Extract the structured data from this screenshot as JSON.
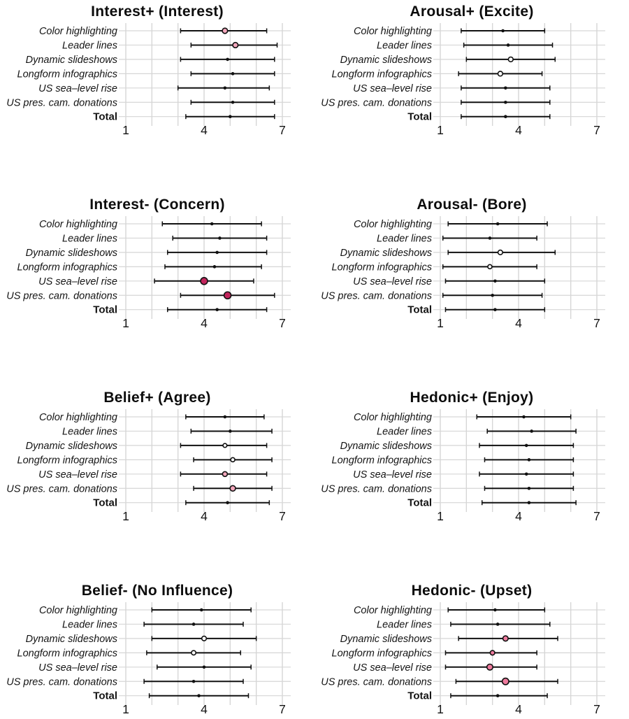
{
  "axis": {
    "min": 1,
    "max": 7,
    "tick_values": [
      1,
      4,
      7
    ],
    "grid_values": [
      1,
      2,
      3,
      4,
      5,
      6,
      7
    ]
  },
  "colors": {
    "marker_default": "#111111",
    "highlight_white": "#ffffff",
    "highlight_pink_light": "#f3a6bb",
    "highlight_pink_medium": "#ee7a9d",
    "highlight_magenta": "#c2255c",
    "interval": "#111111",
    "grid": "#d6d6d6"
  },
  "chart_data": [
    {
      "type": "scatter",
      "title": "Interest+ (Interest)",
      "xlabel": "",
      "ylabel": "",
      "xlim": [
        1,
        7
      ],
      "xticks": [
        1,
        4,
        7
      ],
      "rows": [
        {
          "label": "Color highlighting",
          "mean": 4.8,
          "lo": 3.1,
          "hi": 6.4,
          "marker": "pink_light",
          "r": 3.8
        },
        {
          "label": "Leader lines",
          "mean": 5.2,
          "lo": 3.5,
          "hi": 6.8,
          "marker": "pink_light",
          "r": 3.8
        },
        {
          "label": "Dynamic slideshows",
          "mean": 4.9,
          "lo": 3.1,
          "hi": 6.7,
          "marker": "default",
          "r": 2.3
        },
        {
          "label": "Longform infographics",
          "mean": 5.1,
          "lo": 3.5,
          "hi": 6.7,
          "marker": "default",
          "r": 2.3
        },
        {
          "label": "US sea–level rise",
          "mean": 4.8,
          "lo": 3.0,
          "hi": 6.5,
          "marker": "default",
          "r": 2.3
        },
        {
          "label": "US pres. cam. donations",
          "mean": 5.1,
          "lo": 3.5,
          "hi": 6.7,
          "marker": "default",
          "r": 2.3
        },
        {
          "label": "Total",
          "mean": 5.0,
          "lo": 3.3,
          "hi": 6.7,
          "marker": "default",
          "r": 2.3
        }
      ]
    },
    {
      "type": "scatter",
      "title": "Arousal+ (Excite)",
      "xlabel": "",
      "ylabel": "",
      "xlim": [
        1,
        7
      ],
      "xticks": [
        1,
        4,
        7
      ],
      "rows": [
        {
          "label": "Color highlighting",
          "mean": 3.4,
          "lo": 1.8,
          "hi": 5.0,
          "marker": "default",
          "r": 2.3
        },
        {
          "label": "Leader lines",
          "mean": 3.6,
          "lo": 1.9,
          "hi": 5.3,
          "marker": "default",
          "r": 2.3
        },
        {
          "label": "Dynamic slideshows",
          "mean": 3.7,
          "lo": 2.0,
          "hi": 5.4,
          "marker": "white",
          "r": 3.4
        },
        {
          "label": "Longform infographics",
          "mean": 3.3,
          "lo": 1.7,
          "hi": 4.9,
          "marker": "white",
          "r": 3.4
        },
        {
          "label": "US sea–level rise",
          "mean": 3.5,
          "lo": 1.8,
          "hi": 5.2,
          "marker": "default",
          "r": 2.3
        },
        {
          "label": "US pres. cam. donations",
          "mean": 3.5,
          "lo": 1.8,
          "hi": 5.2,
          "marker": "default",
          "r": 2.3
        },
        {
          "label": "Total",
          "mean": 3.5,
          "lo": 1.8,
          "hi": 5.2,
          "marker": "default",
          "r": 2.3
        }
      ]
    },
    {
      "type": "scatter",
      "title": "Interest- (Concern)",
      "xlabel": "",
      "ylabel": "",
      "xlim": [
        1,
        7
      ],
      "xticks": [
        1,
        4,
        7
      ],
      "rows": [
        {
          "label": "Color highlighting",
          "mean": 4.3,
          "lo": 2.4,
          "hi": 6.2,
          "marker": "default",
          "r": 2.3
        },
        {
          "label": "Leader lines",
          "mean": 4.6,
          "lo": 2.8,
          "hi": 6.4,
          "marker": "default",
          "r": 2.3
        },
        {
          "label": "Dynamic slideshows",
          "mean": 4.5,
          "lo": 2.6,
          "hi": 6.4,
          "marker": "default",
          "r": 2.3
        },
        {
          "label": "Longform infographics",
          "mean": 4.4,
          "lo": 2.5,
          "hi": 6.2,
          "marker": "default",
          "r": 2.3
        },
        {
          "label": "US sea–level rise",
          "mean": 4.0,
          "lo": 2.1,
          "hi": 5.9,
          "marker": "magenta",
          "r": 5.0
        },
        {
          "label": "US pres. cam. donations",
          "mean": 4.9,
          "lo": 3.1,
          "hi": 6.7,
          "marker": "magenta",
          "r": 5.0
        },
        {
          "label": "Total",
          "mean": 4.5,
          "lo": 2.6,
          "hi": 6.4,
          "marker": "default",
          "r": 2.3
        }
      ]
    },
    {
      "type": "scatter",
      "title": "Arousal- (Bore)",
      "xlabel": "",
      "ylabel": "",
      "xlim": [
        1,
        7
      ],
      "xticks": [
        1,
        4,
        7
      ],
      "rows": [
        {
          "label": "Color highlighting",
          "mean": 3.2,
          "lo": 1.3,
          "hi": 5.1,
          "marker": "default",
          "r": 2.3
        },
        {
          "label": "Leader lines",
          "mean": 2.9,
          "lo": 1.1,
          "hi": 4.7,
          "marker": "default",
          "r": 2.3
        },
        {
          "label": "Dynamic slideshows",
          "mean": 3.3,
          "lo": 1.3,
          "hi": 5.4,
          "marker": "white",
          "r": 3.3
        },
        {
          "label": "Longform infographics",
          "mean": 2.9,
          "lo": 1.1,
          "hi": 4.7,
          "marker": "white",
          "r": 3.0
        },
        {
          "label": "US sea–level rise",
          "mean": 3.1,
          "lo": 1.2,
          "hi": 5.0,
          "marker": "default",
          "r": 2.3
        },
        {
          "label": "US pres. cam. donations",
          "mean": 3.0,
          "lo": 1.1,
          "hi": 4.9,
          "marker": "default",
          "r": 2.3
        },
        {
          "label": "Total",
          "mean": 3.1,
          "lo": 1.2,
          "hi": 5.0,
          "marker": "default",
          "r": 2.3
        }
      ]
    },
    {
      "type": "scatter",
      "title": "Belief+ (Agree)",
      "xlabel": "",
      "ylabel": "",
      "xlim": [
        1,
        7
      ],
      "xticks": [
        1,
        4,
        7
      ],
      "rows": [
        {
          "label": "Color highlighting",
          "mean": 4.8,
          "lo": 3.3,
          "hi": 6.3,
          "marker": "default",
          "r": 2.3
        },
        {
          "label": "Leader lines",
          "mean": 5.0,
          "lo": 3.5,
          "hi": 6.6,
          "marker": "default",
          "r": 2.3
        },
        {
          "label": "Dynamic slideshows",
          "mean": 4.8,
          "lo": 3.1,
          "hi": 6.4,
          "marker": "white",
          "r": 2.8
        },
        {
          "label": "Longform infographics",
          "mean": 5.1,
          "lo": 3.6,
          "hi": 6.6,
          "marker": "white",
          "r": 3.0
        },
        {
          "label": "US sea–level rise",
          "mean": 4.8,
          "lo": 3.1,
          "hi": 6.4,
          "marker": "pink_light",
          "r": 3.5
        },
        {
          "label": "US pres. cam. donations",
          "mean": 5.1,
          "lo": 3.6,
          "hi": 6.6,
          "marker": "pink_light",
          "r": 3.9
        },
        {
          "label": "Total",
          "mean": 4.9,
          "lo": 3.3,
          "hi": 6.5,
          "marker": "default",
          "r": 2.3
        }
      ]
    },
    {
      "type": "scatter",
      "title": "Hedonic+ (Enjoy)",
      "xlabel": "",
      "ylabel": "",
      "xlim": [
        1,
        7
      ],
      "xticks": [
        1,
        4,
        7
      ],
      "rows": [
        {
          "label": "Color highlighting",
          "mean": 4.2,
          "lo": 2.4,
          "hi": 6.0,
          "marker": "default",
          "r": 2.3
        },
        {
          "label": "Leader lines",
          "mean": 4.5,
          "lo": 2.8,
          "hi": 6.2,
          "marker": "default",
          "r": 2.3
        },
        {
          "label": "Dynamic slideshows",
          "mean": 4.3,
          "lo": 2.5,
          "hi": 6.1,
          "marker": "default",
          "r": 2.3
        },
        {
          "label": "Longform infographics",
          "mean": 4.4,
          "lo": 2.7,
          "hi": 6.1,
          "marker": "default",
          "r": 2.3
        },
        {
          "label": "US sea–level rise",
          "mean": 4.3,
          "lo": 2.5,
          "hi": 6.1,
          "marker": "default",
          "r": 2.3
        },
        {
          "label": "US pres. cam. donations",
          "mean": 4.4,
          "lo": 2.7,
          "hi": 6.1,
          "marker": "default",
          "r": 2.3
        },
        {
          "label": "Total",
          "mean": 4.4,
          "lo": 2.6,
          "hi": 6.2,
          "marker": "default",
          "r": 2.3
        }
      ]
    },
    {
      "type": "scatter",
      "title": "Belief- (No Influence)",
      "xlabel": "",
      "ylabel": "",
      "xlim": [
        1,
        7
      ],
      "xticks": [
        1,
        4,
        7
      ],
      "rows": [
        {
          "label": "Color highlighting",
          "mean": 3.9,
          "lo": 2.0,
          "hi": 5.8,
          "marker": "default",
          "r": 2.3
        },
        {
          "label": "Leader lines",
          "mean": 3.6,
          "lo": 1.7,
          "hi": 5.5,
          "marker": "default",
          "r": 2.3
        },
        {
          "label": "Dynamic slideshows",
          "mean": 4.0,
          "lo": 2.0,
          "hi": 6.0,
          "marker": "white",
          "r": 3.3
        },
        {
          "label": "Longform infographics",
          "mean": 3.6,
          "lo": 1.8,
          "hi": 5.4,
          "marker": "white",
          "r": 3.2
        },
        {
          "label": "US sea–level rise",
          "mean": 4.0,
          "lo": 2.2,
          "hi": 5.8,
          "marker": "default",
          "r": 2.3
        },
        {
          "label": "US pres. cam. donations",
          "mean": 3.6,
          "lo": 1.7,
          "hi": 5.5,
          "marker": "default",
          "r": 2.3
        },
        {
          "label": "Total",
          "mean": 3.8,
          "lo": 1.9,
          "hi": 5.7,
          "marker": "default",
          "r": 2.3
        }
      ]
    },
    {
      "type": "scatter",
      "title": "Hedonic- (Upset)",
      "xlabel": "",
      "ylabel": "",
      "xlim": [
        1,
        7
      ],
      "xticks": [
        1,
        4,
        7
      ],
      "rows": [
        {
          "label": "Color highlighting",
          "mean": 3.1,
          "lo": 1.3,
          "hi": 5.0,
          "marker": "default",
          "r": 2.3
        },
        {
          "label": "Leader lines",
          "mean": 3.2,
          "lo": 1.4,
          "hi": 5.2,
          "marker": "default",
          "r": 2.3
        },
        {
          "label": "Dynamic slideshows",
          "mean": 3.5,
          "lo": 1.7,
          "hi": 5.5,
          "marker": "pink_medium",
          "r": 3.8
        },
        {
          "label": "Longform infographics",
          "mean": 3.0,
          "lo": 1.2,
          "hi": 4.7,
          "marker": "pink_medium",
          "r": 3.3
        },
        {
          "label": "US sea–level rise",
          "mean": 2.9,
          "lo": 1.2,
          "hi": 4.7,
          "marker": "pink_medium",
          "r": 4.3
        },
        {
          "label": "US pres. cam. donations",
          "mean": 3.5,
          "lo": 1.6,
          "hi": 5.5,
          "marker": "pink_medium",
          "r": 4.7
        },
        {
          "label": "Total",
          "mean": 3.2,
          "lo": 1.4,
          "hi": 5.1,
          "marker": "default",
          "r": 2.3
        }
      ]
    }
  ]
}
